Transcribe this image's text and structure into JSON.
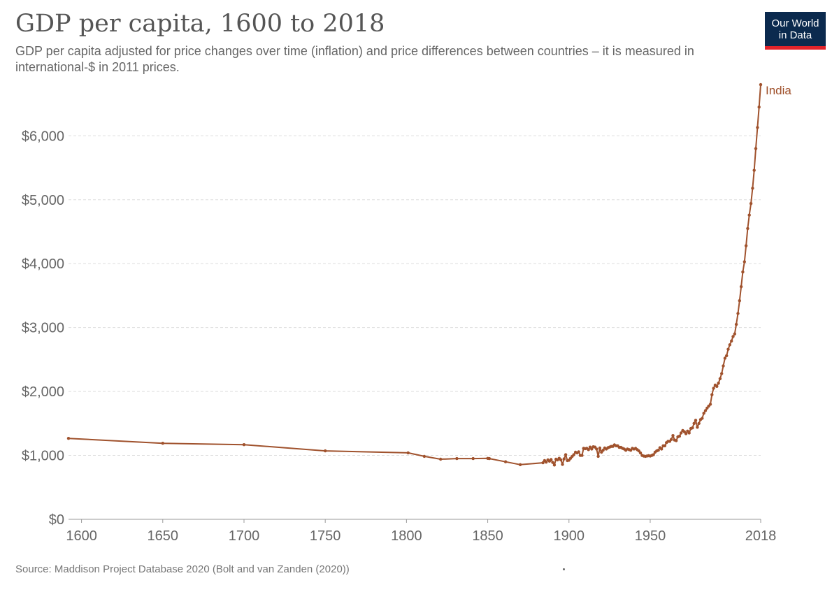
{
  "header": {
    "title": "GDP per capita, 1600 to 2018",
    "subtitle": "GDP per capita adjusted for price changes over time (inflation) and price differences between countries – it is measured in international-$ in 2011 prices."
  },
  "logo": {
    "line1": "Our World",
    "line2": "in Data"
  },
  "footer": {
    "source": "Source: Maddison Project Database 2020 (Bolt and van Zanden (2020))"
  },
  "colors": {
    "series": "#a0522d",
    "logo_bg": "#0b2a4e",
    "logo_accent": "#e1232a",
    "grid": "#dddddd"
  },
  "chart_data": {
    "type": "line",
    "xlim": [
      1592,
      2018
    ],
    "ylim": [
      0,
      6900
    ],
    "grid": "horizontal dashed",
    "x_ticks": [
      1600,
      1650,
      1700,
      1750,
      1800,
      1850,
      1900,
      1950,
      2018
    ],
    "y_ticks": [
      0,
      1000,
      2000,
      3000,
      4000,
      5000,
      6000
    ],
    "y_tick_labels": [
      "$0",
      "$1,000",
      "$2,000",
      "$3,000",
      "$4,000",
      "$5,000",
      "$6,000"
    ],
    "series": [
      {
        "name": "India",
        "color": "#a0522d",
        "points": [
          [
            1592,
            1266
          ],
          [
            1650,
            1190
          ],
          [
            1700,
            1168
          ],
          [
            1750,
            1070
          ],
          [
            1801,
            1040
          ],
          [
            1811,
            985
          ],
          [
            1821,
            940
          ],
          [
            1831,
            950
          ],
          [
            1841,
            950
          ],
          [
            1850,
            953
          ],
          [
            1851,
            950
          ],
          [
            1861,
            900
          ],
          [
            1870,
            855
          ],
          [
            1884,
            885
          ],
          [
            1885,
            920
          ],
          [
            1886,
            895
          ],
          [
            1887,
            930
          ],
          [
            1888,
            910
          ],
          [
            1889,
            935
          ],
          [
            1890,
            890
          ],
          [
            1891,
            850
          ],
          [
            1892,
            940
          ],
          [
            1893,
            930
          ],
          [
            1894,
            955
          ],
          [
            1895,
            930
          ],
          [
            1896,
            860
          ],
          [
            1897,
            945
          ],
          [
            1898,
            1010
          ],
          [
            1899,
            920
          ],
          [
            1900,
            925
          ],
          [
            1901,
            955
          ],
          [
            1902,
            985
          ],
          [
            1903,
            1010
          ],
          [
            1904,
            1050
          ],
          [
            1905,
            1040
          ],
          [
            1906,
            1055
          ],
          [
            1907,
            1000
          ],
          [
            1908,
            1000
          ],
          [
            1909,
            1110
          ],
          [
            1910,
            1105
          ],
          [
            1911,
            1110
          ],
          [
            1912,
            1090
          ],
          [
            1913,
            1130
          ],
          [
            1914,
            1100
          ],
          [
            1915,
            1135
          ],
          [
            1916,
            1130
          ],
          [
            1917,
            1100
          ],
          [
            1918,
            985
          ],
          [
            1919,
            1115
          ],
          [
            1920,
            1050
          ],
          [
            1921,
            1080
          ],
          [
            1922,
            1115
          ],
          [
            1923,
            1100
          ],
          [
            1924,
            1120
          ],
          [
            1925,
            1130
          ],
          [
            1926,
            1140
          ],
          [
            1927,
            1140
          ],
          [
            1928,
            1165
          ],
          [
            1929,
            1150
          ],
          [
            1930,
            1150
          ],
          [
            1931,
            1125
          ],
          [
            1932,
            1125
          ],
          [
            1933,
            1110
          ],
          [
            1934,
            1100
          ],
          [
            1935,
            1080
          ],
          [
            1936,
            1100
          ],
          [
            1937,
            1090
          ],
          [
            1938,
            1080
          ],
          [
            1939,
            1110
          ],
          [
            1940,
            1100
          ],
          [
            1941,
            1110
          ],
          [
            1942,
            1090
          ],
          [
            1943,
            1070
          ],
          [
            1944,
            1040
          ],
          [
            1945,
            1000
          ],
          [
            1946,
            990
          ],
          [
            1947,
            985
          ],
          [
            1948,
            990
          ],
          [
            1949,
            995
          ],
          [
            1950,
            990
          ],
          [
            1951,
            1000
          ],
          [
            1952,
            1010
          ],
          [
            1953,
            1050
          ],
          [
            1954,
            1070
          ],
          [
            1955,
            1080
          ],
          [
            1956,
            1120
          ],
          [
            1957,
            1100
          ],
          [
            1958,
            1150
          ],
          [
            1959,
            1150
          ],
          [
            1960,
            1200
          ],
          [
            1961,
            1220
          ],
          [
            1962,
            1220
          ],
          [
            1963,
            1250
          ],
          [
            1964,
            1310
          ],
          [
            1965,
            1240
          ],
          [
            1966,
            1230
          ],
          [
            1967,
            1290
          ],
          [
            1968,
            1300
          ],
          [
            1969,
            1350
          ],
          [
            1970,
            1390
          ],
          [
            1971,
            1370
          ],
          [
            1972,
            1340
          ],
          [
            1973,
            1380
          ],
          [
            1974,
            1350
          ],
          [
            1975,
            1420
          ],
          [
            1976,
            1430
          ],
          [
            1977,
            1500
          ],
          [
            1978,
            1550
          ],
          [
            1979,
            1440
          ],
          [
            1980,
            1500
          ],
          [
            1981,
            1560
          ],
          [
            1982,
            1580
          ],
          [
            1983,
            1660
          ],
          [
            1984,
            1700
          ],
          [
            1985,
            1740
          ],
          [
            1986,
            1770
          ],
          [
            1987,
            1800
          ],
          [
            1988,
            1950
          ],
          [
            1989,
            2050
          ],
          [
            1990,
            2100
          ],
          [
            1991,
            2080
          ],
          [
            1992,
            2130
          ],
          [
            1993,
            2200
          ],
          [
            1994,
            2280
          ],
          [
            1995,
            2400
          ],
          [
            1996,
            2520
          ],
          [
            1997,
            2560
          ],
          [
            1998,
            2660
          ],
          [
            1999,
            2730
          ],
          [
            2000,
            2790
          ],
          [
            2001,
            2860
          ],
          [
            2002,
            2900
          ],
          [
            2003,
            3050
          ],
          [
            2004,
            3220
          ],
          [
            2005,
            3420
          ],
          [
            2006,
            3640
          ],
          [
            2007,
            3870
          ],
          [
            2008,
            4030
          ],
          [
            2009,
            4280
          ],
          [
            2010,
            4550
          ],
          [
            2011,
            4760
          ],
          [
            2012,
            4940
          ],
          [
            2013,
            5180
          ],
          [
            2014,
            5460
          ],
          [
            2015,
            5800
          ],
          [
            2016,
            6130
          ],
          [
            2017,
            6450
          ],
          [
            2018,
            6800
          ]
        ]
      }
    ]
  }
}
